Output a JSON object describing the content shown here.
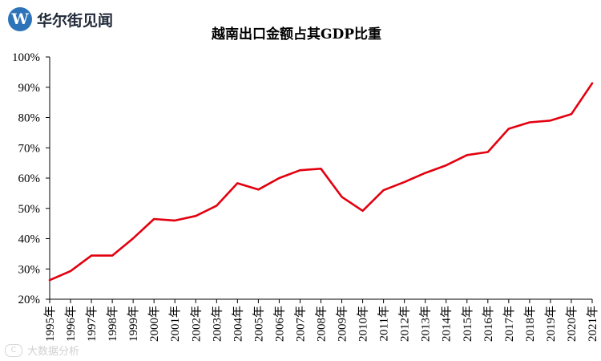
{
  "brand": {
    "logo_glyph": "W",
    "name": "华尔街见闻"
  },
  "watermark": {
    "icon": "camera-icon",
    "glyph": "C",
    "text": "大数据分析"
  },
  "colors": {
    "line": "#e3000f",
    "axis": "#000000",
    "logo": "#2d73b9"
  },
  "chart_data": {
    "type": "line",
    "title": "越南出口金额占其GDP比重",
    "xlabel": "",
    "ylabel": "",
    "ylim": [
      20,
      100
    ],
    "yticks": [
      20,
      30,
      40,
      50,
      60,
      70,
      80,
      90,
      100
    ],
    "ytick_labels": [
      "20%",
      "30%",
      "40%",
      "50%",
      "60%",
      "70%",
      "80%",
      "90%",
      "100%"
    ],
    "grid": false,
    "categories": [
      "1995年",
      "1996年",
      "1997年",
      "1998年",
      "1999年",
      "2000年",
      "2001年",
      "2002年",
      "2003年",
      "2004年",
      "2005年",
      "2006年",
      "2007年",
      "2008年",
      "2009年",
      "2010年",
      "2011年",
      "2012年",
      "2013年",
      "2014年",
      "2015年",
      "2016年",
      "2017年",
      "2018年",
      "2019年",
      "2020年",
      "2021年"
    ],
    "series": [
      {
        "name": "越南出口金额占其GDP比重",
        "values": [
          26.3,
          29.3,
          34.4,
          34.4,
          40.1,
          46.5,
          46.0,
          47.5,
          50.9,
          58.3,
          56.2,
          60.0,
          62.6,
          63.1,
          53.8,
          49.2,
          56.0,
          58.7,
          61.7,
          64.2,
          67.6,
          68.6,
          76.3,
          78.4,
          79.0,
          81.1,
          91.3
        ]
      }
    ]
  }
}
